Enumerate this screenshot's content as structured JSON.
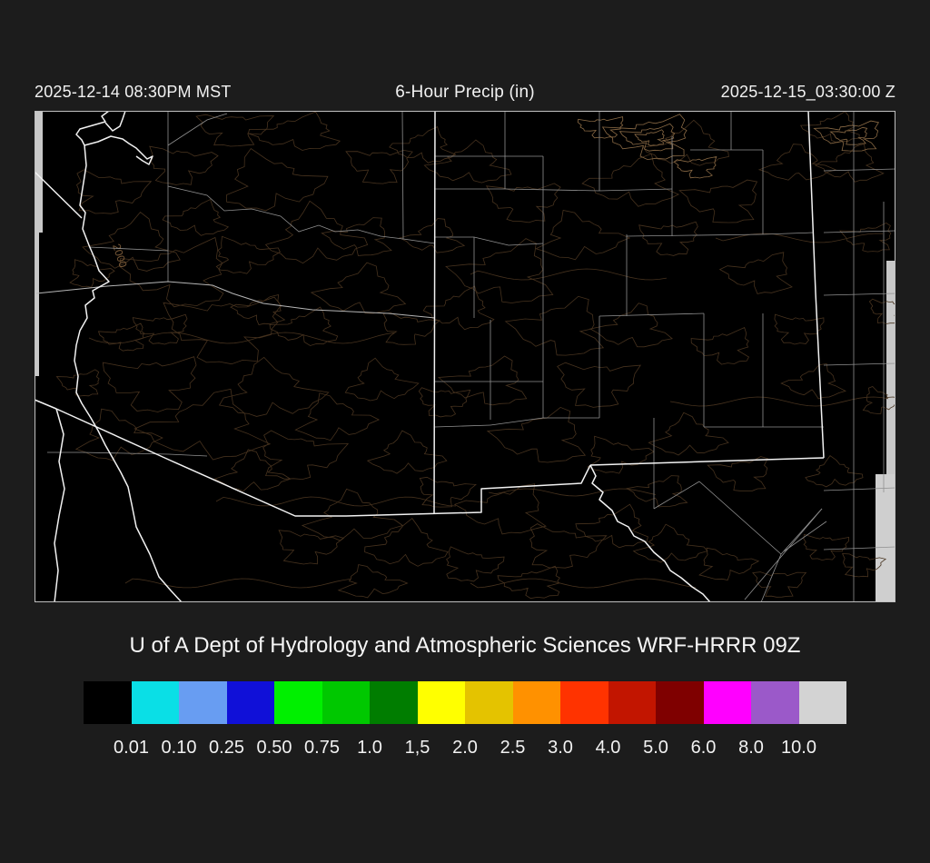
{
  "header": {
    "valid_local": "2025-12-14 08:30PM MST",
    "title": "6-Hour Precip (in)",
    "valid_utc": "2025-12-15_03:30:00 Z"
  },
  "caption": "U of A Dept of Hydrology and Atmospheric Sciences WRF-HRRR 09Z",
  "map": {
    "contour_label": "2000",
    "background": "#000000",
    "state_border_color": "#f2f2f2",
    "county_border_color": "#909090",
    "contour_color": "#46321e",
    "contour_bright_color": "#8a6a45",
    "out_of_domain_color": "#c8c8c8"
  },
  "colorbar": {
    "units": "in",
    "labels": [
      "0.01",
      "0.10",
      "0.25",
      "0.50",
      "0.75",
      "1.0",
      "1,5",
      "2.0",
      "2.5",
      "3.0",
      "4.0",
      "5.0",
      "6.0",
      "8.0",
      "10.0"
    ],
    "colors": [
      "#000000",
      "#0adfe6",
      "#689df2",
      "#1010d8",
      "#00f000",
      "#00c800",
      "#007d00",
      "#ffff00",
      "#e4c300",
      "#ff9100",
      "#ff3300",
      "#c21500",
      "#7f0000",
      "#ff00ff",
      "#9b59c9",
      "#d3d3d3"
    ]
  }
}
